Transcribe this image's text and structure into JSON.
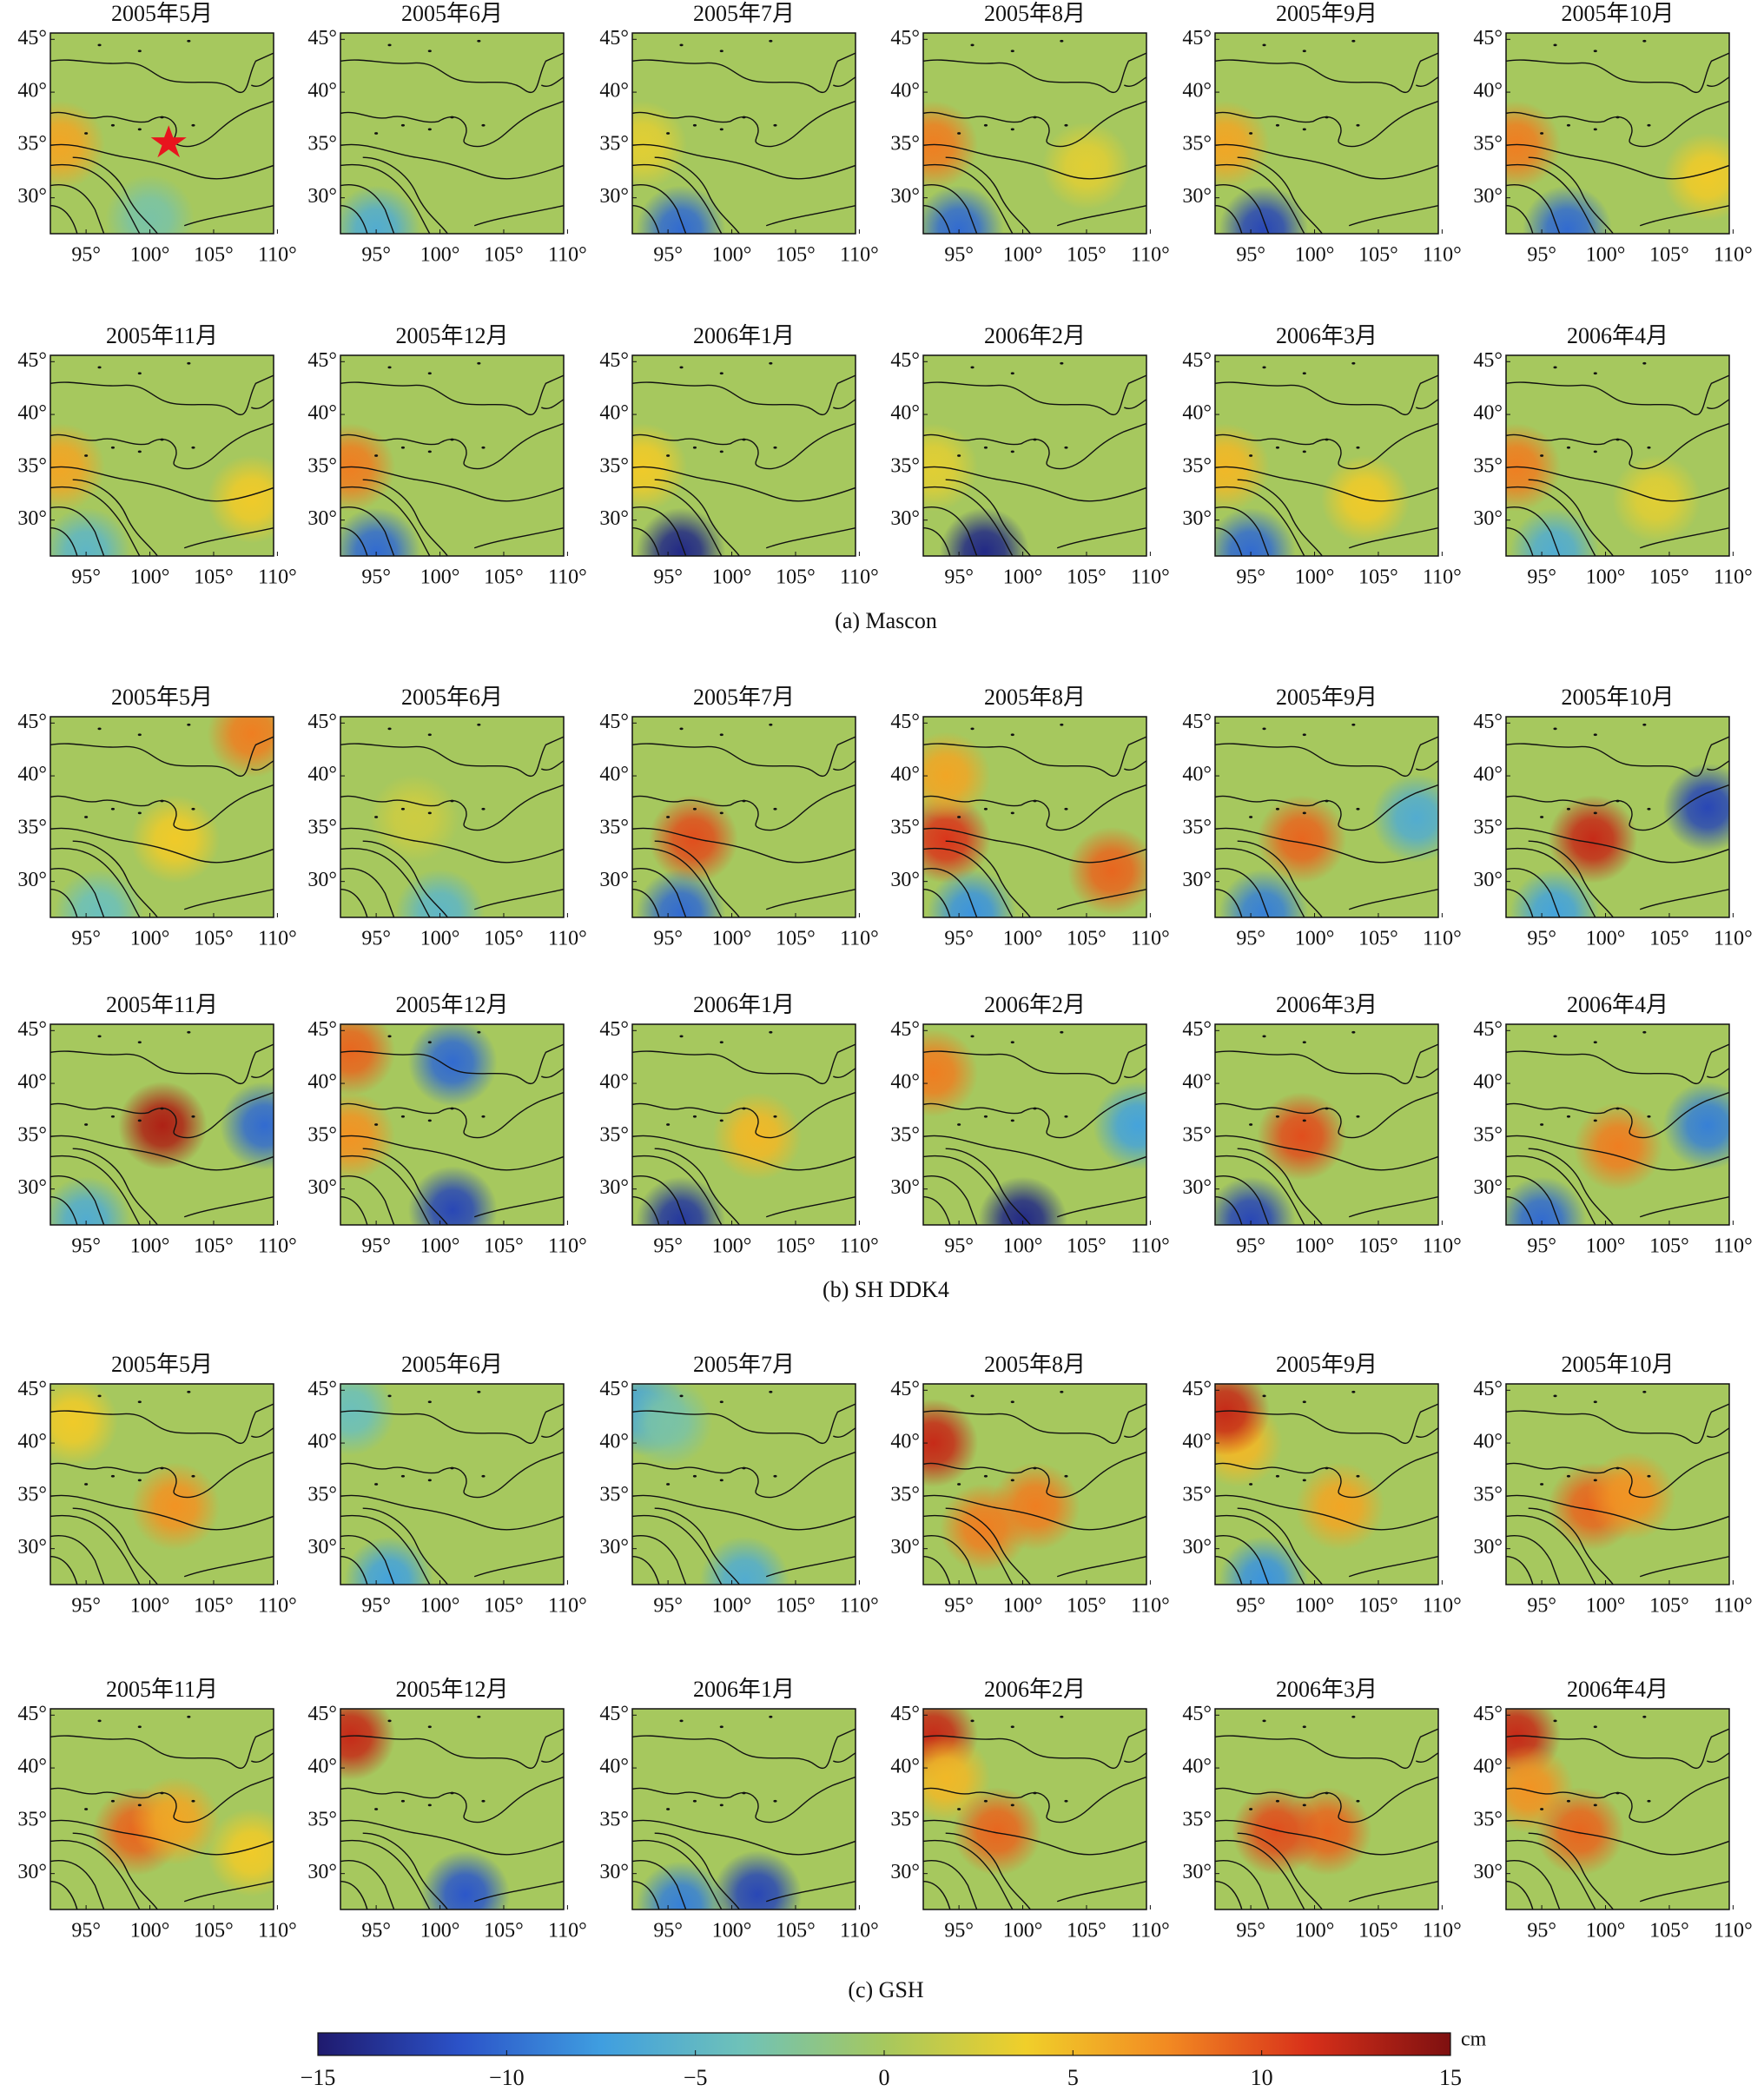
{
  "maps": {
    "xlim": [
      92.2,
      109.7
    ],
    "ylim": [
      26.6,
      45.6
    ],
    "xticks": [
      {
        "value": 95,
        "label": "95°"
      },
      {
        "value": 100,
        "label": "100°"
      },
      {
        "value": 105,
        "label": "105°"
      },
      {
        "value": 110,
        "label": "110°"
      }
    ],
    "yticks": [
      {
        "value": 45,
        "label": "45°"
      },
      {
        "value": 40,
        "label": "40°"
      },
      {
        "value": 35,
        "label": "35°"
      },
      {
        "value": 30,
        "label": "30°"
      }
    ]
  },
  "groups": [
    {
      "caption": "(a) Mascon",
      "panels": [
        {
          "title": "2005年5月",
          "anomalies": [
            [
              93,
              35,
              6
            ],
            [
              100,
              28,
              -3
            ]
          ]
        },
        {
          "title": "2005年6月",
          "anomalies": [
            [
              95,
              27,
              -6
            ]
          ]
        },
        {
          "title": "2005年7月",
          "anomalies": [
            [
              96,
              27,
              -10
            ],
            [
              93,
              35,
              3
            ]
          ]
        },
        {
          "title": "2005年8月",
          "anomalies": [
            [
              93,
              35,
              8
            ],
            [
              95,
              27,
              -10
            ],
            [
              105,
              33,
              3
            ]
          ]
        },
        {
          "title": "2005年9月",
          "anomalies": [
            [
              93,
              35,
              6
            ],
            [
              96,
              27,
              -12
            ]
          ]
        },
        {
          "title": "2005年10月",
          "anomalies": [
            [
              93,
              35,
              8
            ],
            [
              97,
              27,
              -10
            ],
            [
              108,
              32,
              4
            ]
          ]
        },
        {
          "title": "2005年11月",
          "anomalies": [
            [
              93,
              35,
              6
            ],
            [
              95,
              27,
              -5
            ],
            [
              108,
              32,
              4
            ]
          ]
        },
        {
          "title": "2005年12月",
          "anomalies": [
            [
              93,
              35,
              8
            ],
            [
              95,
              27,
              -10
            ]
          ]
        },
        {
          "title": "2006年1月",
          "anomalies": [
            [
              96,
              27,
              -14
            ],
            [
              93,
              35,
              4
            ]
          ]
        },
        {
          "title": "2006年2月",
          "anomalies": [
            [
              97,
              27,
              -14
            ],
            [
              93,
              35,
              3
            ]
          ]
        },
        {
          "title": "2006年3月",
          "anomalies": [
            [
              95,
              27,
              -10
            ],
            [
              104,
              32,
              4
            ],
            [
              93,
              35,
              5
            ]
          ]
        },
        {
          "title": "2006年4月",
          "anomalies": [
            [
              93,
              35,
              8
            ],
            [
              96,
              27,
              -6
            ],
            [
              104,
              32,
              3
            ]
          ]
        }
      ]
    },
    {
      "caption": "(b) SH DDK4",
      "panels": [
        {
          "title": "2005年5月",
          "anomalies": [
            [
              108,
              44,
              8
            ],
            [
              102,
              34,
              4
            ],
            [
              96,
              27,
              -4
            ]
          ]
        },
        {
          "title": "2005年6月",
          "anomalies": [
            [
              100,
              27,
              -5
            ],
            [
              98,
              36,
              2
            ]
          ]
        },
        {
          "title": "2005年7月",
          "anomalies": [
            [
              97,
              34,
              10
            ],
            [
              96,
              27,
              -10
            ]
          ]
        },
        {
          "title": "2005年8月",
          "anomalies": [
            [
              94,
              34,
              11
            ],
            [
              107,
              31,
              9
            ],
            [
              94,
              40,
              6
            ],
            [
              96,
              27,
              -8
            ]
          ]
        },
        {
          "title": "2005年9月",
          "anomalies": [
            [
              99,
              34,
              9
            ],
            [
              108,
              36,
              -6
            ],
            [
              96,
              27,
              -9
            ]
          ]
        },
        {
          "title": "2005年10月",
          "anomalies": [
            [
              99,
              34,
              12
            ],
            [
              108,
              37,
              -12
            ],
            [
              96,
              27,
              -7
            ]
          ]
        },
        {
          "title": "2005年11月",
          "anomalies": [
            [
              101,
              36,
              13
            ],
            [
              109,
              36,
              -10
            ],
            [
              95,
              27,
              -6
            ]
          ]
        },
        {
          "title": "2005年12月",
          "anomalies": [
            [
              101,
              42,
              -10
            ],
            [
              101,
              28,
              -12
            ],
            [
              93,
              43,
              9
            ],
            [
              93,
              35,
              7
            ]
          ]
        },
        {
          "title": "2006年1月",
          "anomalies": [
            [
              96,
              27,
              -13
            ],
            [
              102,
              35,
              5
            ]
          ]
        },
        {
          "title": "2006年2月",
          "anomalies": [
            [
              100,
              27,
              -14
            ],
            [
              93,
              41,
              8
            ],
            [
              109,
              36,
              -7
            ]
          ]
        },
        {
          "title": "2006年3月",
          "anomalies": [
            [
              99,
              35,
              10
            ],
            [
              95,
              27,
              -12
            ]
          ]
        },
        {
          "title": "2006年4月",
          "anomalies": [
            [
              101,
              34,
              8
            ],
            [
              108,
              36,
              -9
            ],
            [
              95,
              27,
              -10
            ]
          ]
        }
      ]
    },
    {
      "caption": "(c) GSH",
      "panels": [
        {
          "title": "2005年5月",
          "anomalies": [
            [
              102,
              34,
              7
            ],
            [
              94,
              42,
              4
            ]
          ]
        },
        {
          "title": "2005年6月",
          "anomalies": [
            [
              96,
              27,
              -7
            ],
            [
              93,
              43,
              -4
            ]
          ]
        },
        {
          "title": "2005年7月",
          "anomalies": [
            [
              93,
              43,
              -7
            ],
            [
              95,
              42,
              -3
            ],
            [
              101,
              27,
              -6
            ]
          ]
        },
        {
          "title": "2005年8月",
          "anomalies": [
            [
              93,
              40,
              12
            ],
            [
              97,
              32,
              8
            ],
            [
              101,
              34,
              8
            ]
          ]
        },
        {
          "title": "2005年9月",
          "anomalies": [
            [
              94,
              40,
              5
            ],
            [
              93,
              43,
              12
            ],
            [
              96,
              27,
              -8
            ],
            [
              102,
              34,
              6
            ]
          ]
        },
        {
          "title": "2005年10月",
          "anomalies": [
            [
              99,
              34,
              9
            ],
            [
              102,
              35,
              7
            ]
          ]
        },
        {
          "title": "2005年11月",
          "anomalies": [
            [
              99,
              34,
              9
            ],
            [
              102,
              35,
              6
            ],
            [
              108,
              32,
              4
            ]
          ]
        },
        {
          "title": "2005年12月",
          "anomalies": [
            [
              93,
              43,
              12
            ],
            [
              102,
              28,
              -11
            ]
          ]
        },
        {
          "title": "2006年1月",
          "anomalies": [
            [
              102,
              28,
              -12
            ],
            [
              96,
              27,
              -9
            ]
          ]
        },
        {
          "title": "2006年2月",
          "anomalies": [
            [
              93,
              43,
              12
            ],
            [
              94,
              39,
              5
            ],
            [
              98,
              34,
              9
            ]
          ]
        },
        {
          "title": "2006年3月",
          "anomalies": [
            [
              101,
              34,
              9
            ],
            [
              97,
              34,
              10
            ]
          ]
        },
        {
          "title": "2006年4月",
          "anomalies": [
            [
              93,
              43,
              12
            ],
            [
              94,
              38,
              7
            ],
            [
              98,
              34,
              9
            ]
          ]
        }
      ]
    }
  ],
  "colorbar": {
    "lim": [
      -15,
      15
    ],
    "unit": "cm",
    "colors": [
      "#1f1a6e",
      "#2b52c8",
      "#3f9ee0",
      "#6fc2b8",
      "#a6c85e",
      "#f0cf2a",
      "#f28a22",
      "#d8301a",
      "#7e1010"
    ],
    "ticks": [
      {
        "value": -15,
        "label": "−15"
      },
      {
        "value": -10,
        "label": "−10"
      },
      {
        "value": -5,
        "label": "−5"
      },
      0,
      5,
      10,
      15
    ]
  }
}
